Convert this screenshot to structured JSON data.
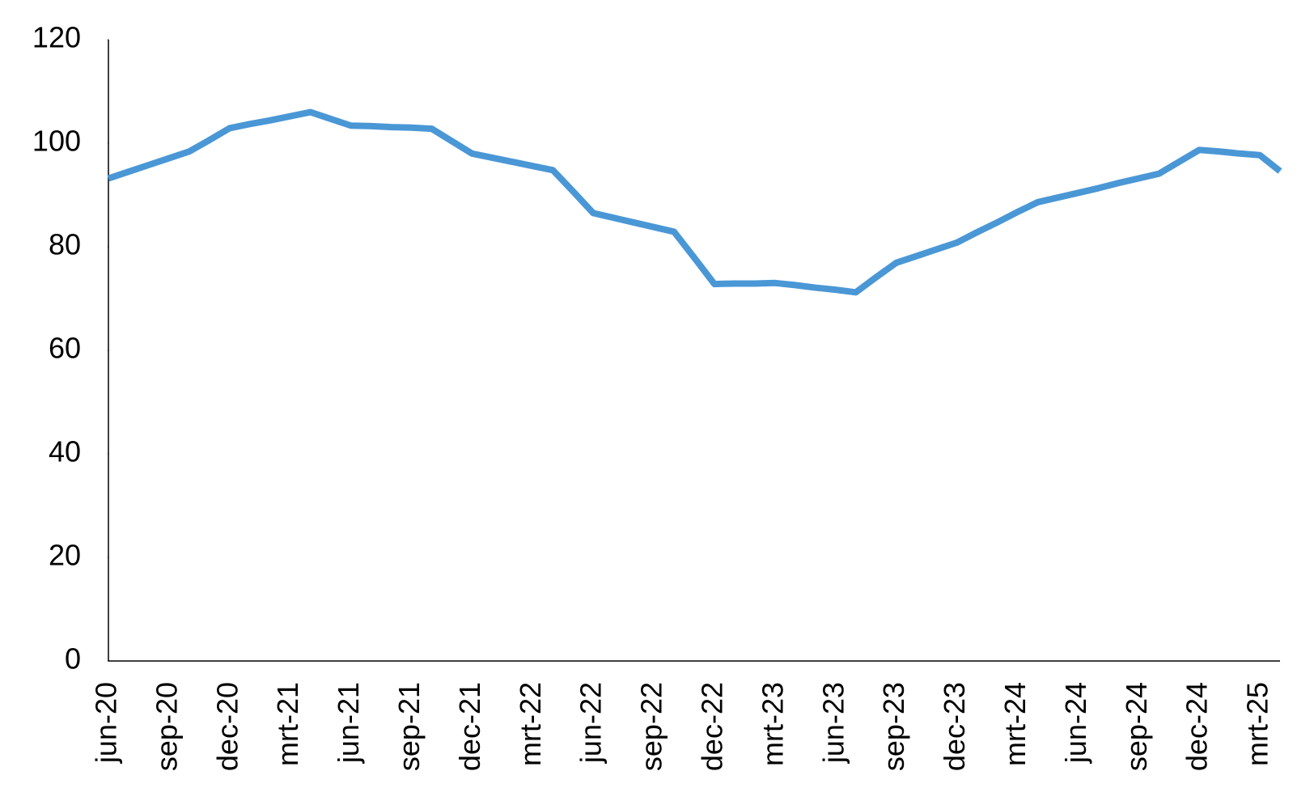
{
  "chart_data": {
    "type": "line",
    "color": "#4a97d6",
    "categories": [
      "jun-20",
      null,
      null,
      "sep-20",
      null,
      null,
      "dec-20",
      null,
      null,
      "mrt-21",
      null,
      null,
      "jun-21",
      null,
      null,
      "sep-21",
      null,
      null,
      "dec-21",
      null,
      null,
      "mrt-22",
      null,
      null,
      "jun-22",
      null,
      null,
      "sep-22",
      null,
      null,
      "dec-22",
      null,
      null,
      "mrt-23",
      null,
      null,
      "jun-23",
      null,
      null,
      "sep-23",
      null,
      null,
      "dec-23",
      null,
      null,
      "mrt-24",
      null,
      null,
      "jun-24",
      null,
      null,
      "sep-24",
      null,
      null,
      "dec-24",
      null,
      null,
      "mrt-25",
      null
    ],
    "values": [
      93.2,
      94.5,
      95.8,
      97.1,
      98.4,
      100.6,
      102.9,
      103.7,
      104.4,
      105.2,
      106.0,
      104.7,
      103.4,
      103.3,
      103.1,
      103.0,
      102.8,
      100.4,
      98.0,
      97.2,
      96.4,
      95.6,
      94.8,
      90.7,
      86.5,
      85.6,
      84.7,
      83.8,
      82.9,
      77.9,
      72.8,
      72.9,
      72.9,
      73.0,
      72.6,
      72.1,
      71.7,
      71.2,
      74.1,
      76.9,
      78.2,
      79.5,
      80.8,
      82.8,
      84.7,
      86.7,
      88.6,
      89.5,
      90.4,
      91.3,
      92.3,
      93.2,
      94.1,
      96.4,
      98.7,
      98.4,
      98.0,
      97.7,
      94.6
    ],
    "ylim": [
      0,
      120
    ],
    "yticks": [
      0,
      20,
      40,
      60,
      80,
      100,
      120
    ]
  }
}
